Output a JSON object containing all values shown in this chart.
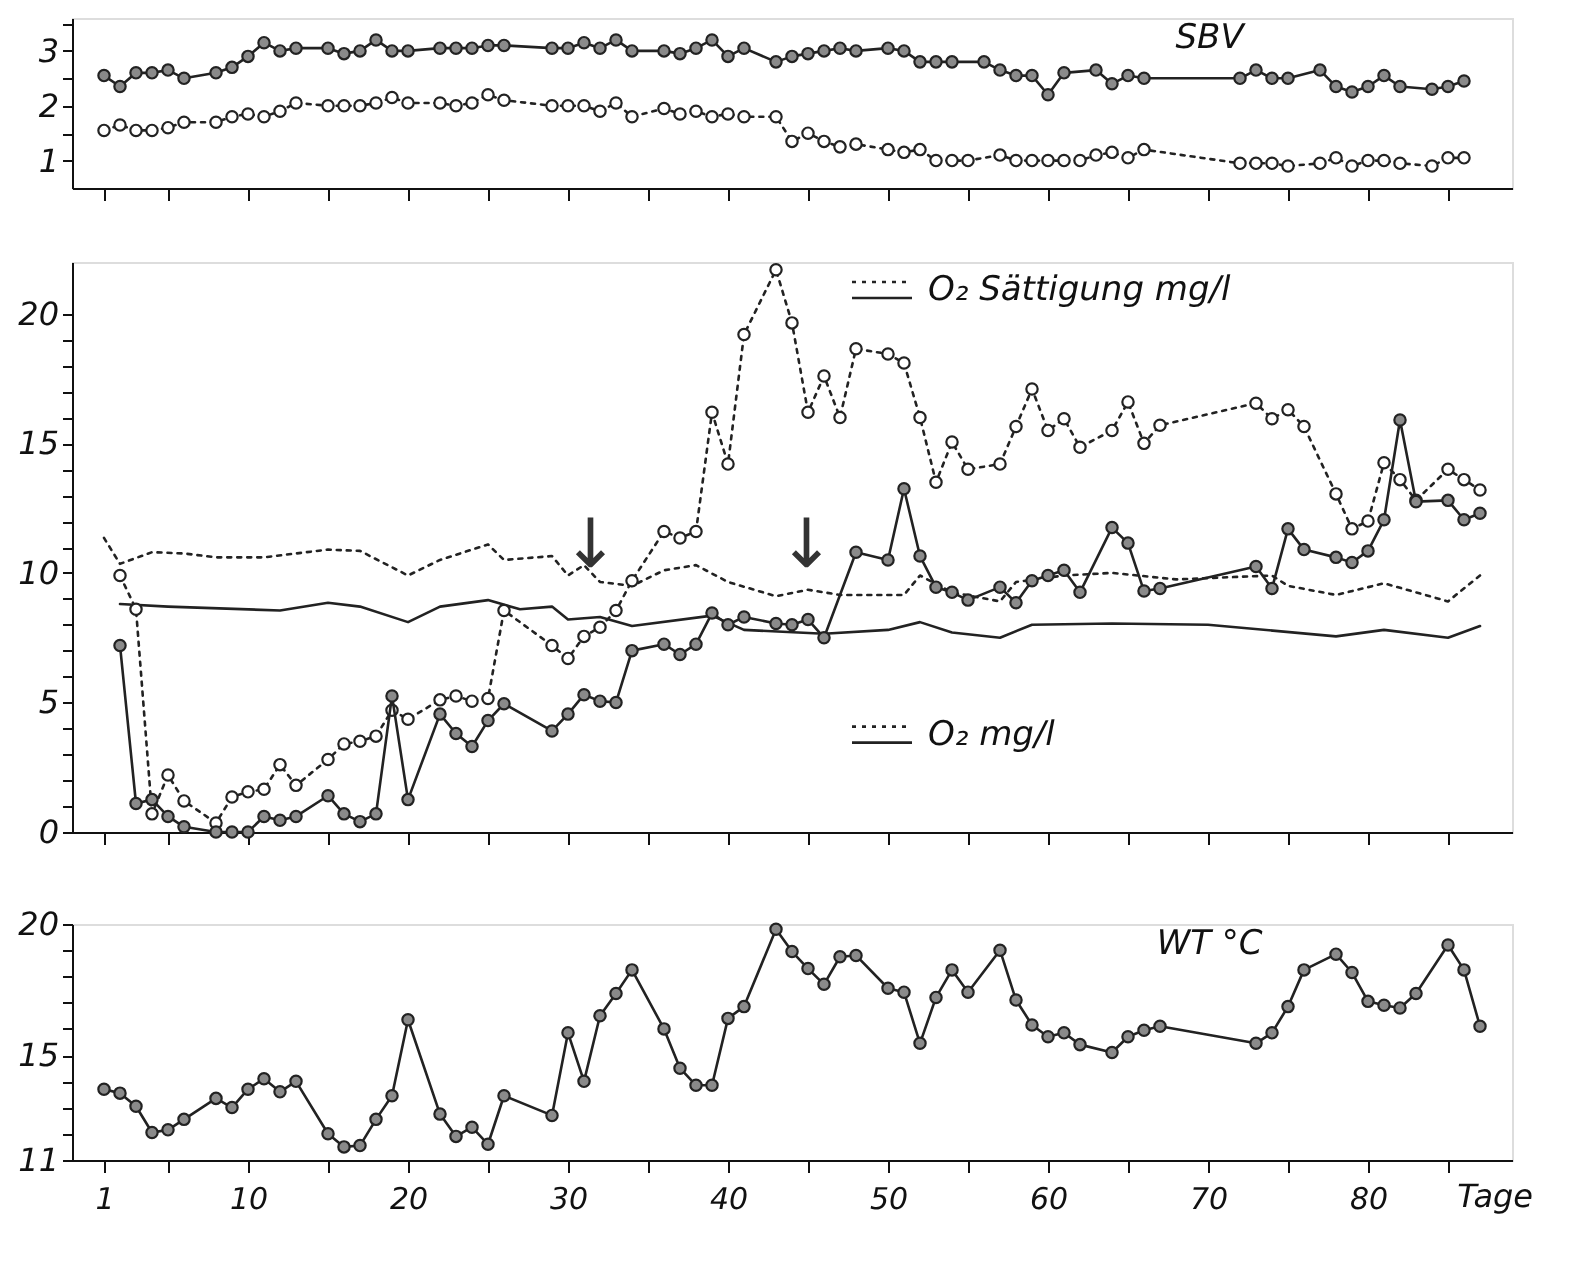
{
  "chart_data": [
    {
      "type": "line",
      "title": "SBV",
      "tick_labels": "y",
      "marker": "circle",
      "xlim": [
        -1,
        89
      ],
      "xticks": [
        1,
        {
          "value": 5,
          "label": null
        },
        10,
        {
          "value": 15,
          "label": null
        },
        20,
        {
          "value": 25,
          "label": null
        },
        30,
        {
          "value": 35,
          "label": null
        },
        40,
        {
          "value": 45,
          "label": null
        },
        50,
        {
          "value": 55,
          "label": null
        },
        60,
        {
          "value": 65,
          "label": null
        },
        70,
        {
          "value": 75,
          "label": null
        },
        80,
        {
          "value": 85,
          "label": null
        }
      ],
      "ylim": [
        0.5,
        3.6
      ],
      "yticks": [
        1,
        {
          "value": 1.5,
          "label": null
        },
        2,
        {
          "value": 2.5,
          "label": null
        },
        3,
        {
          "value": 3.5,
          "label": null
        }
      ],
      "series": [
        {
          "color": "#222222",
          "line_style": "solid",
          "x": [
            1,
            2,
            3,
            4,
            5,
            6,
            8,
            9,
            10,
            11,
            12,
            13,
            15,
            16,
            17,
            18,
            19,
            20,
            22,
            23,
            24,
            25,
            26,
            29,
            30,
            31,
            32,
            33,
            34,
            36,
            37,
            38,
            39,
            40,
            41,
            43,
            44,
            45,
            46,
            47,
            48,
            50,
            51,
            52,
            53,
            54,
            56,
            57,
            58,
            59,
            60,
            61,
            63,
            64,
            65,
            66,
            72,
            73,
            74,
            75,
            77,
            78,
            79,
            80,
            81,
            82,
            84,
            85,
            86
          ],
          "values": [
            2.55,
            2.35,
            2.6,
            2.6,
            2.65,
            2.5,
            2.6,
            2.7,
            2.9,
            3.15,
            3.0,
            3.05,
            3.05,
            2.95,
            3.0,
            3.2,
            3.0,
            3.0,
            3.05,
            3.05,
            3.05,
            3.1,
            3.1,
            3.05,
            3.05,
            3.15,
            3.05,
            3.2,
            3.0,
            3.0,
            2.95,
            3.05,
            3.2,
            2.9,
            3.05,
            2.8,
            2.9,
            2.95,
            3.0,
            3.05,
            3.0,
            3.05,
            3.0,
            2.8,
            2.8,
            2.8,
            2.8,
            2.65,
            2.55,
            2.55,
            2.2,
            2.6,
            2.65,
            2.4,
            2.55,
            2.5,
            2.5,
            2.65,
            2.5,
            2.5,
            2.65,
            2.35,
            2.25,
            2.35,
            2.55,
            2.35,
            2.3,
            2.35,
            2.45
          ]
        },
        {
          "color": "#222222",
          "line_style": "dotted",
          "x": [
            1,
            2,
            3,
            4,
            5,
            6,
            8,
            9,
            10,
            11,
            12,
            13,
            15,
            16,
            17,
            18,
            19,
            20,
            22,
            23,
            24,
            25,
            26,
            29,
            30,
            31,
            32,
            33,
            34,
            36,
            37,
            38,
            39,
            40,
            41,
            43,
            44,
            45,
            46,
            47,
            48,
            50,
            51,
            52,
            53,
            54,
            55,
            57,
            58,
            59,
            60,
            61,
            62,
            63,
            64,
            65,
            66,
            72,
            73,
            74,
            75,
            77,
            78,
            79,
            80,
            81,
            82,
            84,
            85,
            86
          ],
          "values": [
            1.55,
            1.65,
            1.55,
            1.55,
            1.6,
            1.7,
            1.7,
            1.8,
            1.85,
            1.8,
            1.9,
            2.05,
            2.0,
            2.0,
            2.0,
            2.05,
            2.15,
            2.05,
            2.05,
            2.0,
            2.05,
            2.2,
            2.1,
            2.0,
            2.0,
            2.0,
            1.9,
            2.05,
            1.8,
            1.95,
            1.85,
            1.9,
            1.8,
            1.85,
            1.8,
            1.8,
            1.35,
            1.5,
            1.35,
            1.25,
            1.3,
            1.2,
            1.15,
            1.2,
            1.0,
            1.0,
            1.0,
            1.1,
            1.0,
            1.0,
            1.0,
            1.0,
            1.0,
            1.1,
            1.15,
            1.05,
            1.2,
            0.95,
            0.95,
            0.95,
            0.9,
            0.95,
            1.05,
            0.9,
            1.0,
            1.0,
            0.95,
            0.9,
            1.05,
            1.05
          ]
        }
      ]
    },
    {
      "type": "line",
      "tick_labels": "y",
      "legend": "top right",
      "xlim": [
        -1,
        89
      ],
      "xticks": [
        1,
        {
          "value": 5,
          "label": null
        },
        10,
        {
          "value": 15,
          "label": null
        },
        20,
        {
          "value": 25,
          "label": null
        },
        30,
        {
          "value": 35,
          "label": null
        },
        40,
        {
          "value": 45,
          "label": null
        },
        50,
        {
          "value": 55,
          "label": null
        },
        60,
        {
          "value": 65,
          "label": null
        },
        70,
        {
          "value": 75,
          "label": null
        },
        80,
        {
          "value": 85,
          "label": null
        }
      ],
      "ylim": [
        0,
        22
      ],
      "yticks": [
        0,
        {
          "value": 1,
          "label": null
        },
        {
          "value": 2,
          "label": null
        },
        {
          "value": 3,
          "label": null
        },
        {
          "value": 4,
          "label": null
        },
        5,
        {
          "value": 6,
          "label": null
        },
        {
          "value": 7,
          "label": null
        },
        {
          "value": 8,
          "label": null
        },
        {
          "value": 9,
          "label": null
        },
        10,
        {
          "value": 11,
          "label": null
        },
        {
          "value": 12,
          "label": null
        },
        {
          "value": 13,
          "label": null
        },
        {
          "value": 14,
          "label": null
        },
        15,
        {
          "value": 16,
          "label": null
        },
        {
          "value": 17,
          "label": null
        },
        {
          "value": 18,
          "label": null
        },
        {
          "value": 19,
          "label": null
        },
        20
      ],
      "annotations": [
        "↓",
        "↓"
      ],
      "series": [
        {
          "name": "O₂ Sättigung mg/l",
          "color": "#222222",
          "line_style": "dotted",
          "marker": "none",
          "x": [
            1,
            2,
            4,
            6,
            8,
            11,
            15,
            17,
            20,
            22,
            25,
            26,
            29,
            30,
            31,
            32,
            34,
            36,
            38,
            40,
            43,
            45,
            47,
            51,
            52,
            54,
            57,
            58,
            61,
            64,
            68,
            74,
            75,
            78,
            81,
            85,
            87
          ],
          "values": [
            11.35,
            10.35,
            10.8,
            10.75,
            10.6,
            10.6,
            10.9,
            10.85,
            9.9,
            10.5,
            11.1,
            10.5,
            10.65,
            9.9,
            10.3,
            9.65,
            9.5,
            10.1,
            10.3,
            9.65,
            9.1,
            9.35,
            9.15,
            9.15,
            9.9,
            9.25,
            8.9,
            9.65,
            9.9,
            10.0,
            9.75,
            9.9,
            9.5,
            9.15,
            9.6,
            8.9,
            9.9
          ]
        },
        {
          "color": "#222222",
          "line_style": "solid",
          "marker": "none",
          "x": [
            2,
            5,
            12,
            15,
            17,
            20,
            22,
            25,
            27,
            29,
            30,
            32,
            34,
            39,
            41,
            46,
            50,
            52,
            54,
            57,
            59,
            64,
            70,
            78,
            81,
            85,
            87
          ],
          "values": [
            8.8,
            8.7,
            8.55,
            8.85,
            8.7,
            8.1,
            8.7,
            8.95,
            8.6,
            8.7,
            8.2,
            8.3,
            7.95,
            8.35,
            7.8,
            7.65,
            7.8,
            8.1,
            7.7,
            7.5,
            8.0,
            8.05,
            8.0,
            7.55,
            7.8,
            7.5,
            7.95
          ]
        },
        {
          "name": "O₂ mg/l",
          "color": "#222222",
          "line_style": "dotted",
          "marker": "circle",
          "x": [
            2,
            3,
            4,
            5,
            6,
            8,
            9,
            10,
            11,
            12,
            13,
            15,
            16,
            17,
            18,
            19,
            20,
            22,
            23,
            24,
            25,
            26,
            29,
            30,
            31,
            32,
            33,
            34,
            36,
            37,
            38,
            39,
            40,
            41,
            43,
            44,
            45,
            46,
            47,
            48,
            50,
            51,
            52,
            53,
            54,
            55,
            57,
            58,
            59,
            60,
            61,
            62,
            64,
            65,
            66,
            67,
            73,
            74,
            75,
            76,
            78,
            79,
            80,
            81,
            82,
            83,
            85,
            86,
            87
          ],
          "values": [
            9.9,
            8.6,
            0.7,
            2.2,
            1.2,
            0.35,
            1.35,
            1.55,
            1.65,
            2.6,
            1.8,
            2.8,
            3.4,
            3.5,
            3.7,
            4.7,
            4.35,
            5.1,
            5.25,
            5.05,
            5.15,
            8.55,
            7.2,
            6.7,
            7.55,
            7.9,
            8.55,
            9.7,
            11.6,
            11.35,
            11.6,
            16.2,
            14.2,
            19.2,
            21.7,
            19.65,
            16.2,
            17.6,
            16.0,
            18.65,
            18.45,
            18.1,
            16.0,
            13.5,
            15.05,
            14.0,
            14.2,
            15.65,
            17.1,
            15.5,
            15.95,
            14.85,
            15.5,
            16.6,
            15.0,
            15.7,
            16.55,
            15.95,
            16.3,
            15.65,
            13.05,
            11.7,
            12.0,
            14.25,
            13.6,
            12.8,
            14.0,
            13.6,
            13.2
          ]
        },
        {
          "color": "#222222",
          "line_style": "solid",
          "marker": "circle",
          "x": [
            2,
            3,
            4,
            5,
            6,
            8,
            9,
            10,
            11,
            12,
            13,
            15,
            16,
            17,
            18,
            19,
            20,
            22,
            23,
            24,
            25,
            26,
            29,
            30,
            31,
            32,
            33,
            34,
            36,
            37,
            38,
            39,
            40,
            41,
            43,
            44,
            45,
            46,
            48,
            50,
            51,
            52,
            53,
            54,
            55,
            57,
            58,
            59,
            60,
            61,
            62,
            64,
            65,
            66,
            67,
            73,
            74,
            75,
            76,
            78,
            79,
            80,
            81,
            82,
            83,
            85,
            86,
            87
          ],
          "values": [
            7.2,
            1.1,
            1.25,
            0.6,
            0.2,
            0.0,
            0.0,
            0.0,
            0.6,
            0.45,
            0.6,
            1.4,
            0.7,
            0.4,
            0.7,
            5.25,
            1.25,
            4.55,
            3.8,
            3.3,
            4.3,
            4.95,
            3.9,
            4.55,
            5.3,
            5.05,
            5.0,
            7.0,
            7.25,
            6.85,
            7.25,
            8.45,
            8.0,
            8.3,
            8.05,
            8.0,
            8.2,
            7.5,
            10.8,
            10.5,
            13.25,
            10.65,
            9.45,
            9.25,
            8.95,
            9.45,
            8.85,
            9.7,
            9.9,
            10.1,
            9.25,
            11.75,
            11.15,
            9.3,
            9.4,
            10.25,
            9.4,
            11.7,
            10.9,
            10.6,
            10.4,
            10.85,
            12.05,
            15.9,
            12.75,
            12.8,
            12.05,
            12.3
          ]
        }
      ]
    },
    {
      "type": "line",
      "title": "WT °C",
      "xlabel": "Tage",
      "marker": "circle",
      "xlim": [
        -1,
        89
      ],
      "xticks": [
        1,
        {
          "value": 5,
          "label": null
        },
        10,
        {
          "value": 15,
          "label": null
        },
        20,
        {
          "value": 25,
          "label": null
        },
        30,
        {
          "value": 35,
          "label": null
        },
        40,
        {
          "value": 45,
          "label": null
        },
        50,
        {
          "value": 55,
          "label": null
        },
        60,
        {
          "value": 65,
          "label": null
        },
        70,
        {
          "value": 75,
          "label": null
        },
        80,
        {
          "value": 85,
          "label": null
        }
      ],
      "ylim": [
        11,
        20
      ],
      "yticks": [
        11,
        {
          "value": 12,
          "label": null
        },
        {
          "value": 13,
          "label": null
        },
        {
          "value": 14,
          "label": null
        },
        15,
        {
          "value": 16,
          "label": null
        },
        {
          "value": 17,
          "label": null
        },
        {
          "value": 18,
          "label": null
        },
        {
          "value": 19,
          "label": null
        },
        20
      ],
      "series": [
        {
          "color": "#222222",
          "line_style": "solid",
          "x": [
            1,
            2,
            3,
            4,
            5,
            6,
            8,
            9,
            10,
            11,
            12,
            13,
            15,
            16,
            17,
            18,
            19,
            20,
            22,
            23,
            24,
            25,
            26,
            29,
            30,
            31,
            32,
            33,
            34,
            36,
            37,
            38,
            39,
            40,
            41,
            43,
            44,
            45,
            46,
            47,
            48,
            50,
            51,
            52,
            53,
            54,
            55,
            57,
            58,
            59,
            60,
            61,
            62,
            64,
            65,
            66,
            67,
            73,
            74,
            75,
            76,
            78,
            79,
            80,
            81,
            82,
            83,
            85,
            86,
            87
          ],
          "values": [
            13.7,
            13.55,
            13.05,
            12.05,
            12.15,
            12.55,
            13.35,
            13.0,
            13.7,
            14.1,
            13.6,
            14.0,
            12.0,
            11.5,
            11.55,
            12.55,
            13.45,
            16.35,
            12.75,
            11.9,
            12.25,
            11.6,
            13.45,
            12.7,
            15.85,
            14.0,
            16.5,
            17.35,
            18.25,
            16.0,
            14.5,
            13.85,
            13.85,
            16.4,
            16.85,
            19.8,
            18.95,
            18.3,
            17.7,
            18.75,
            18.8,
            17.55,
            17.4,
            15.45,
            17.2,
            18.25,
            17.4,
            19.0,
            17.1,
            16.15,
            15.7,
            15.85,
            15.4,
            15.1,
            15.7,
            15.95,
            16.1,
            15.45,
            15.85,
            16.85,
            18.25,
            18.85,
            18.15,
            17.05,
            16.9,
            16.8,
            17.35,
            19.2,
            18.25,
            16.1
          ]
        }
      ]
    }
  ]
}
